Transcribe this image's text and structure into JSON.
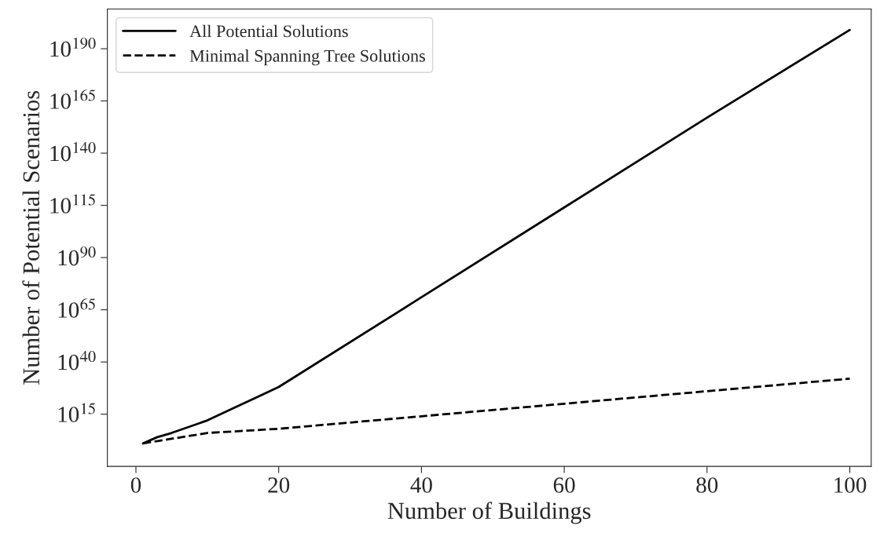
{
  "chart_data": {
    "type": "line",
    "xlabel": "Number of Buildings",
    "ylabel": "Number of Potential Scenarios",
    "log": "y",
    "legend": "top left",
    "grid": false,
    "xlim": [
      -4,
      103
    ],
    "xticks": [
      0,
      20,
      40,
      60,
      80,
      100
    ],
    "ylim": [
      1e-10,
      1e+209
    ],
    "yticks": [
      {
        "value": 1000000000000000.0,
        "label": "10$^{15}$"
      },
      {
        "value": 1e+40,
        "label": "10$^{40}$"
      },
      {
        "value": 1e+65,
        "label": "10$^{65}$"
      },
      {
        "value": 1e+90,
        "label": "10$^{90}$"
      },
      {
        "value": 1e+115,
        "label": "10$^{115}$"
      },
      {
        "value": 1e+140,
        "label": "10$^{140}$"
      },
      {
        "value": 1e+165,
        "label": "10$^{165}$"
      },
      {
        "value": 1e+190,
        "label": "10$^{190}$"
      }
    ],
    "series": [
      {
        "name": "All Potential Solutions",
        "color": "#000000",
        "line_style": "solid",
        "x": [
          1,
          3,
          5,
          10,
          15,
          20,
          40,
          60,
          80,
          100
        ],
        "values": [
          10.0,
          10000.0,
          1000000.0,
          1000000000000.0,
          1e+20,
          1e+28,
          1e+71,
          1e+114,
          1e+157,
          1e+199
        ]
      },
      {
        "name": "Minimal Spanning Tree Solutions",
        "color": "#000000",
        "line_style": "dashed",
        "x": [
          1,
          10,
          20,
          40,
          60,
          80,
          100
        ],
        "values": [
          10.0,
          1000000.0,
          100000000.0,
          100000000000000.0,
          1e+20,
          1e+26,
          1e+32
        ]
      }
    ]
  }
}
